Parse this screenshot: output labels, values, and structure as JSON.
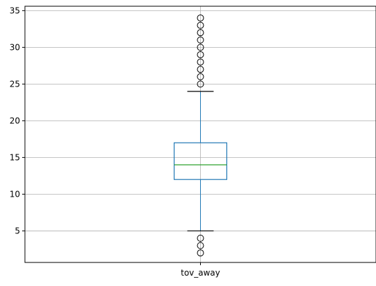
{
  "chart_data": {
    "type": "box",
    "title": "",
    "xlabel": "",
    "ylabel": "",
    "categories": [
      "tov_away"
    ],
    "ylim": [
      0.7,
      35.6
    ],
    "yticks": [
      5,
      10,
      15,
      20,
      25,
      30,
      35
    ],
    "grid": true,
    "boxes": [
      {
        "category": "tov_away",
        "whisker_low": 5,
        "q1": 12,
        "median": 14,
        "q3": 17,
        "whisker_high": 24,
        "outliers": [
          2,
          3,
          4,
          25,
          26,
          27,
          28,
          29,
          30,
          31,
          32,
          33,
          34
        ]
      }
    ]
  },
  "colors": {
    "box": "#1f77b4",
    "median": "#2ca02c",
    "whisker_cap": "#000000",
    "grid": "#b0b0b0",
    "axes": "#000000"
  }
}
